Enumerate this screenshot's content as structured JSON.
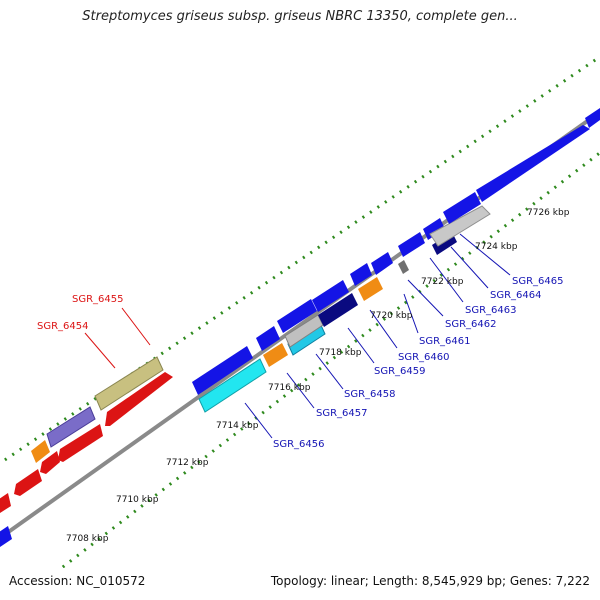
{
  "title": "Streptomyces griseus subsp. griseus NBRC 13350, complete gen...",
  "footer": {
    "accession": "Accession: NC_010572",
    "summary": "Topology: linear; Length: 8,545,929 bp; Genes: 7,222"
  },
  "colors": {
    "backbone": "#8a8a8a",
    "dots": "#2f8a1e",
    "label_blue": "#1414b4",
    "label_red": "#dc1414"
  },
  "ticks": [
    "7708 kbp",
    "7710 kbp",
    "7712 kbp",
    "7714 kbp",
    "7716 kbp",
    "7718 kbp",
    "7720 kbp",
    "7722 kbp",
    "7724 kbp",
    "7726 kbp"
  ],
  "gene_labels": [
    {
      "text": "SGR_6455",
      "color": "red"
    },
    {
      "text": "SGR_6454",
      "color": "red"
    },
    {
      "text": "SGR_6456",
      "color": "blue"
    },
    {
      "text": "SGR_6457",
      "color": "blue"
    },
    {
      "text": "SGR_6458",
      "color": "blue"
    },
    {
      "text": "SGR_6459",
      "color": "blue"
    },
    {
      "text": "SGR_6460",
      "color": "blue"
    },
    {
      "text": "SGR_6461",
      "color": "blue"
    },
    {
      "text": "SGR_6462",
      "color": "blue"
    },
    {
      "text": "SGR_6463",
      "color": "blue"
    },
    {
      "text": "SGR_6464",
      "color": "blue"
    },
    {
      "text": "SGR_6465",
      "color": "blue"
    }
  ]
}
